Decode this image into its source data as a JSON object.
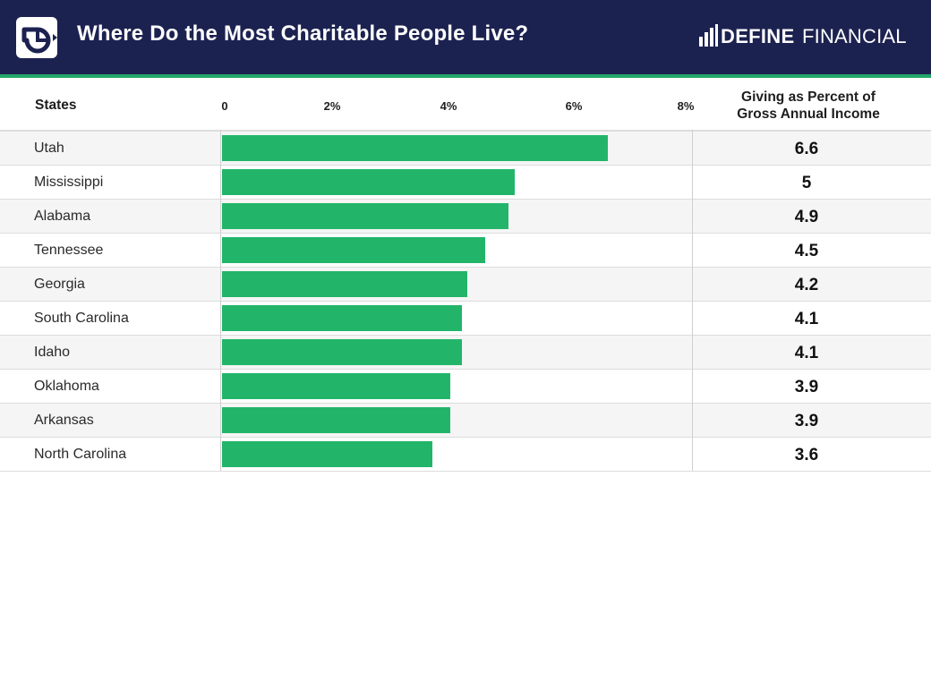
{
  "header": {
    "title": "Where Do the Most Charitable People Live?",
    "brand_bold": "DEFINE",
    "brand_light": "FINANCIAL",
    "background_color": "#1c2250",
    "accent_color": "#22a86a"
  },
  "chart_data": {
    "type": "bar",
    "orientation": "horizontal",
    "title": "Where Do the Most Charitable People Live?",
    "category_header": "States",
    "value_header_line1": "Giving as Percent of",
    "value_header_line2": "Gross Annual Income",
    "x_ticks": [
      "0",
      "2%",
      "4%",
      "6%",
      "8%"
    ],
    "xlim": [
      0,
      8
    ],
    "bar_color": "#22b56a",
    "categories": [
      "Utah",
      "Mississippi",
      "Alabama",
      "Tennessee",
      "Georgia",
      "South Carolina",
      "Idaho",
      "Oklahoma",
      "Arkansas",
      "North Carolina"
    ],
    "values": [
      6.6,
      5,
      4.9,
      4.5,
      4.2,
      4.1,
      4.1,
      3.9,
      3.9,
      3.6
    ]
  }
}
